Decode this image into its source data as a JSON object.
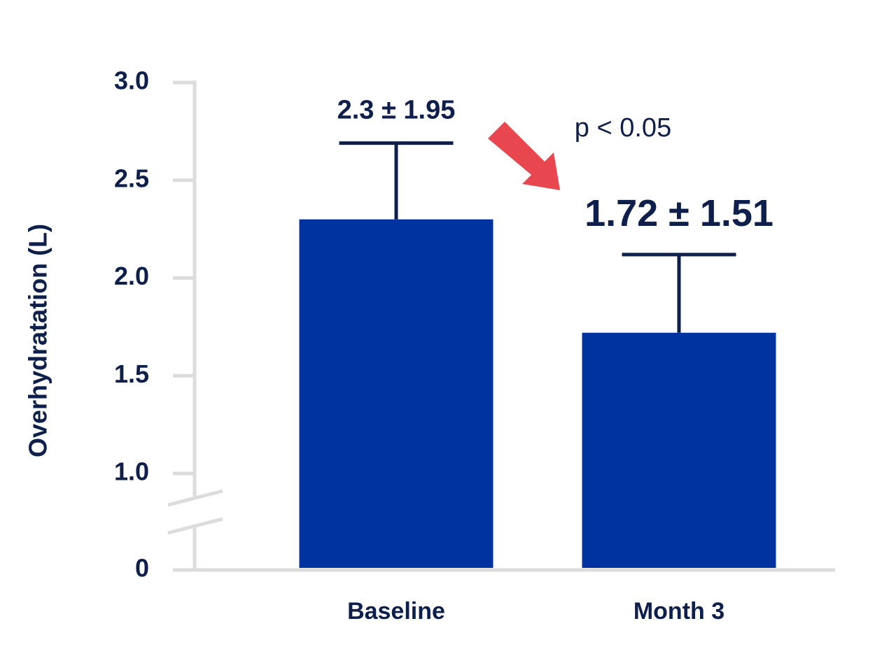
{
  "chart_data": {
    "type": "bar",
    "y_label": "Overhydratation (L)",
    "categories": [
      "Baseline",
      "Month 3"
    ],
    "values": [
      2.3,
      1.72
    ],
    "errors": [
      0.39,
      0.4
    ],
    "value_labels": [
      "2.3 ± 1.95",
      "1.72 ± 1.51"
    ],
    "color": "#0033a0",
    "ylim": [
      0,
      3.0
    ],
    "yticks": [
      0,
      {
        "value": 1,
        "label": "1.0"
      },
      1.5,
      {
        "value": 2,
        "label": "2.0"
      },
      2.5,
      {
        "value": 3,
        "label": "3.0"
      }
    ],
    "axis_break": [
      0,
      1
    ],
    "annotation": "p < 0.05"
  }
}
